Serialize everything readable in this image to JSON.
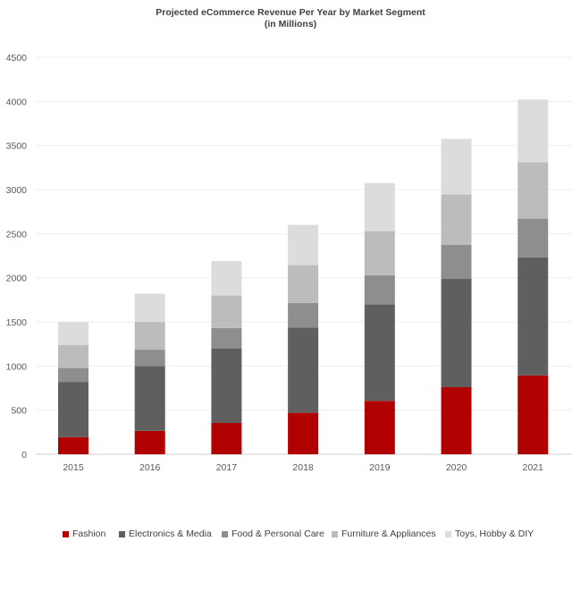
{
  "chart_data": {
    "type": "bar",
    "stacked": true,
    "title": "Projected eCommerce Revenue Per Year by Market Segment",
    "subtitle": "(in Millions)",
    "categories": [
      "2015",
      "2016",
      "2017",
      "2018",
      "2019",
      "2020",
      "2021"
    ],
    "series": [
      {
        "name": "Fashion",
        "color": "#b00000",
        "values": [
          195,
          265,
          355,
          470,
          605,
          760,
          895
        ]
      },
      {
        "name": "Electronics & Media",
        "color": "#5f5f5f",
        "values": [
          625,
          735,
          845,
          965,
          1095,
          1230,
          1335
        ]
      },
      {
        "name": "Food & Personal Care",
        "color": "#8e8e8e",
        "values": [
          160,
          185,
          230,
          280,
          330,
          385,
          440
        ]
      },
      {
        "name": "Furniture & Appliances",
        "color": "#bcbcbc",
        "values": [
          260,
          315,
          370,
          430,
          500,
          570,
          640
        ]
      },
      {
        "name": "Toys, Hobby & DIY",
        "color": "#dcdcdc",
        "values": [
          260,
          320,
          390,
          455,
          545,
          630,
          710
        ]
      }
    ],
    "yticks": [
      0,
      500,
      1000,
      1500,
      2000,
      2500,
      3000,
      3500,
      4000,
      4500
    ],
    "ylim": [
      0,
      4500
    ],
    "grid": true,
    "legend_position": "bottom"
  }
}
